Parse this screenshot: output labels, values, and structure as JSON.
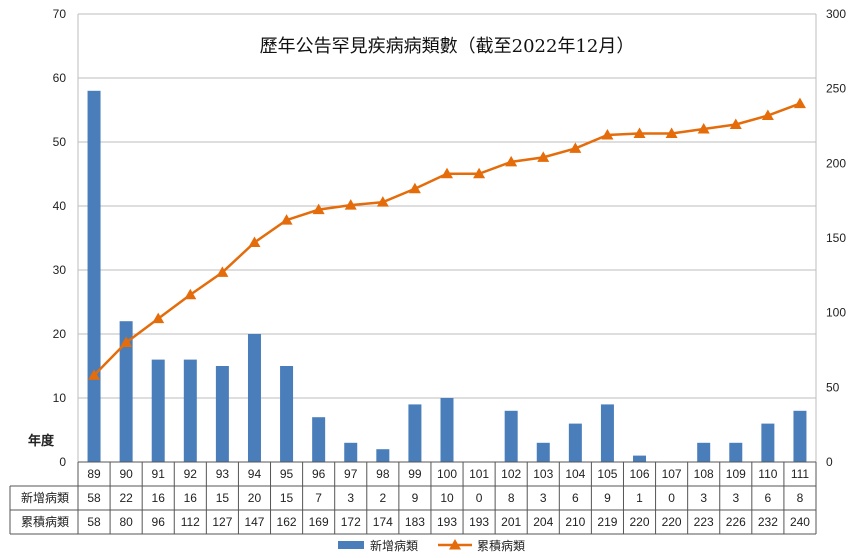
{
  "chart_data": {
    "type": "bar+line",
    "title": "歷年公告罕見疾病病類數（截至2022年12月）",
    "ylabel_left": "年度",
    "categories": [
      "89",
      "90",
      "91",
      "92",
      "93",
      "94",
      "95",
      "96",
      "97",
      "98",
      "99",
      "100",
      "101",
      "102",
      "103",
      "104",
      "105",
      "106",
      "107",
      "108",
      "109",
      "110",
      "111"
    ],
    "series": [
      {
        "name": "新增病類",
        "type": "bar",
        "axis": "left",
        "color": "#4a7ebb",
        "values": [
          58,
          22,
          16,
          16,
          15,
          20,
          15,
          7,
          3,
          2,
          9,
          10,
          0,
          8,
          3,
          6,
          9,
          1,
          0,
          3,
          3,
          6,
          8
        ]
      },
      {
        "name": "累積病類",
        "type": "line",
        "axis": "right",
        "color": "#e46c0a",
        "marker": "triangle",
        "values": [
          58,
          80,
          96,
          112,
          127,
          147,
          162,
          169,
          172,
          174,
          183,
          193,
          193,
          201,
          204,
          210,
          219,
          220,
          220,
          223,
          226,
          232,
          240
        ]
      }
    ],
    "ylim_left": [
      0,
      70
    ],
    "yticks_left": [
      "0",
      "10",
      "20",
      "30",
      "40",
      "50",
      "60",
      "70"
    ],
    "ylim_right": [
      0,
      300
    ],
    "yticks_right": [
      "0",
      "50",
      "100",
      "150",
      "200",
      "250",
      "300"
    ],
    "grid": true,
    "legend": "bottom",
    "data_table": true
  }
}
